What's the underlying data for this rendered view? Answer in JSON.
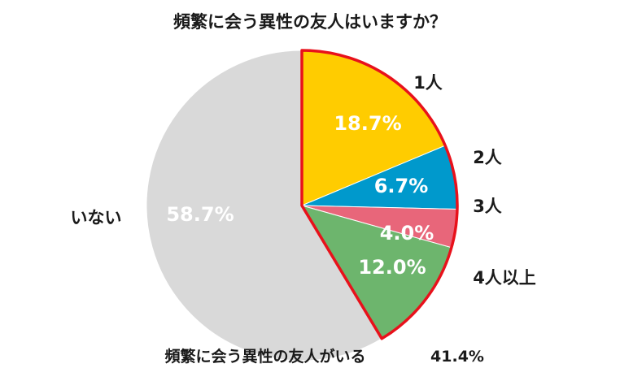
{
  "chart_data": {
    "type": "pie",
    "title": "頻繁に会う異性の友人はいますか？",
    "categories": [
      "1人",
      "2人",
      "3人",
      "4人以上",
      "いない"
    ],
    "values": [
      18.7,
      6.7,
      4.0,
      12.0,
      58.7
    ],
    "value_labels": [
      "18.7%",
      "6.7%",
      "4.0%",
      "12.0%",
      "58.7%"
    ],
    "colors": [
      "#FFCC00",
      "#0099CC",
      "#E8667A",
      "#6DB56D",
      "#D9D9D9"
    ],
    "start": "12 o'clock",
    "direction": "clockwise",
    "highlight": {
      "label": "頻繁に会う異性の友人がいる",
      "value_label": "41.4%",
      "value": 41.4,
      "outline_color": "#E8111B"
    }
  }
}
